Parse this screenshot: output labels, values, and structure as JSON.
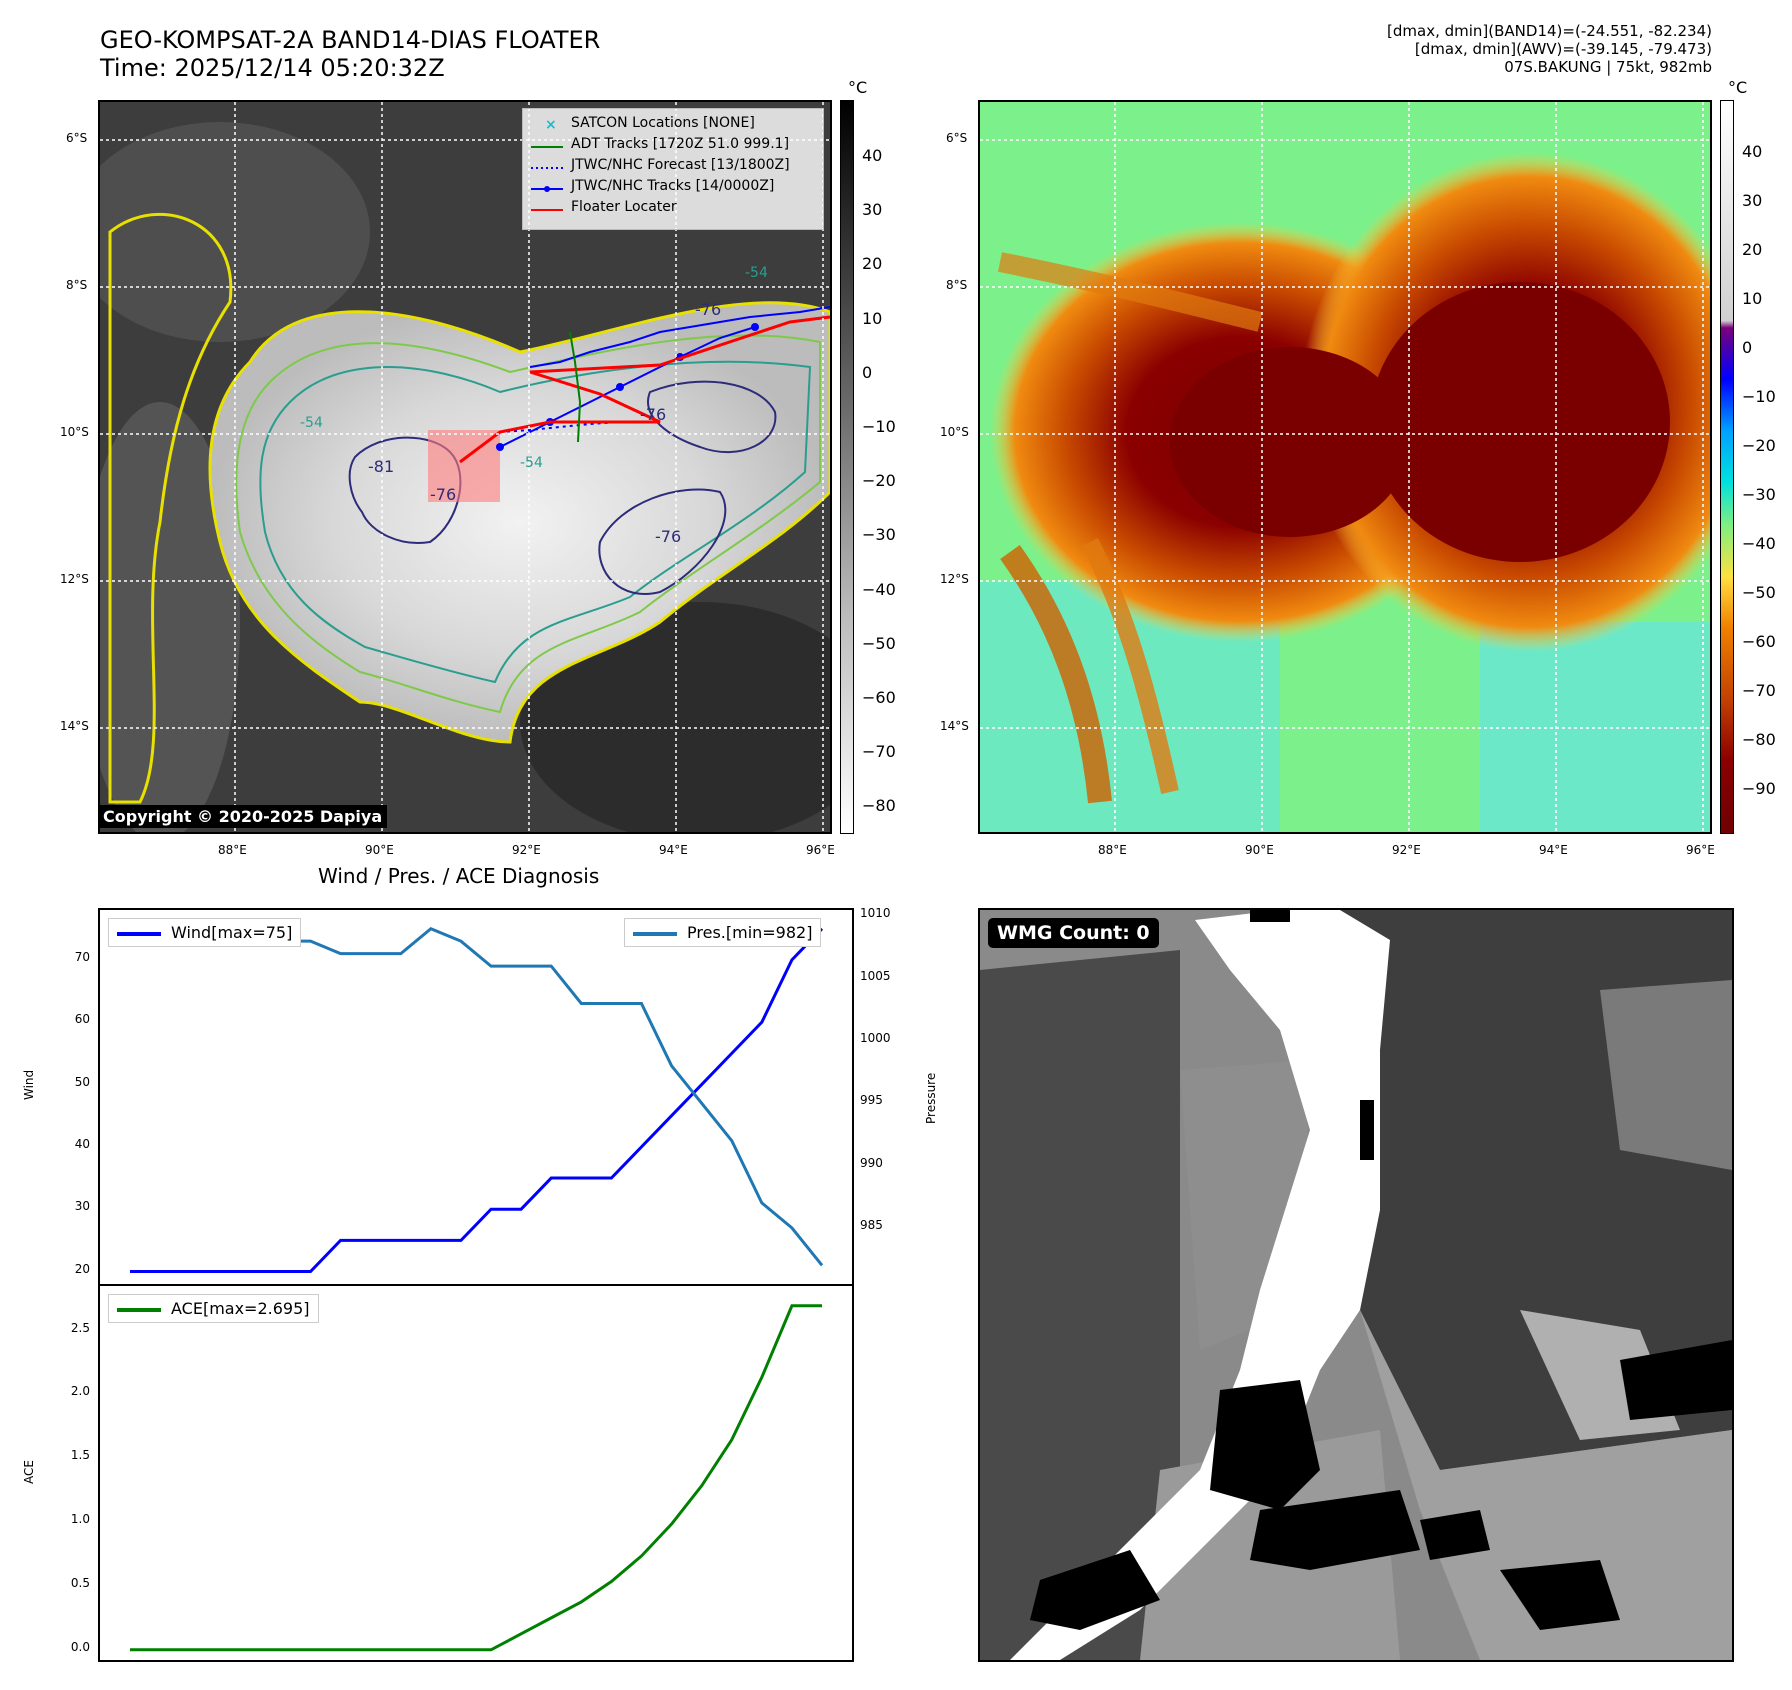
{
  "header": {
    "title_line1": "GEO-KOMPSAT-2A BAND14-DIAS FLOATER",
    "title_line2": "Time: 2025/12/14 05:20:32Z",
    "meta_line1": "[dmax, dmin](BAND14)=(-24.551, -82.234)",
    "meta_line2": "[dmax, dmin](AWV)=(-39.145, -79.473)",
    "meta_line3": "07S.BAKUNG | 75kt, 982mb"
  },
  "map": {
    "lat_labels": [
      "6°S",
      "8°S",
      "10°S",
      "12°S",
      "14°S"
    ],
    "lon_labels": [
      "88°E",
      "90°E",
      "92°E",
      "94°E",
      "96°E"
    ],
    "unit": "°C",
    "copyright": "Copyright © 2020-2025 Dapiya",
    "contour_labels": [
      "-76",
      "-81",
      "-76",
      "-76",
      "-76",
      "-54",
      "-54",
      "-54"
    ]
  },
  "colorbar_left": {
    "ticks": [
      "40",
      "30",
      "20",
      "10",
      "0",
      "−10",
      "−20",
      "−30",
      "−40",
      "−50",
      "−60",
      "−70",
      "−80"
    ]
  },
  "colorbar_right": {
    "ticks": [
      "40",
      "30",
      "20",
      "10",
      "0",
      "−10",
      "−20",
      "−30",
      "−40",
      "−50",
      "−60",
      "−70",
      "−80",
      "−90"
    ]
  },
  "legend": {
    "items": [
      {
        "label": "SATCON Locations [NONE]",
        "color": "#17becf",
        "style": "x"
      },
      {
        "label": "ADT Tracks [1720Z 51.0 999.1]",
        "color": "#008000",
        "style": "solid"
      },
      {
        "label": "JTWC/NHC Forecast [13/1800Z]",
        "color": "#0000ff",
        "style": "dotted"
      },
      {
        "label": "JTWC/NHC Tracks [14/0000Z]",
        "color": "#0000ff",
        "style": "marker"
      },
      {
        "label": "Floater Locater",
        "color": "#ff0000",
        "style": "solid"
      }
    ]
  },
  "diagnosis": {
    "title": "Wind / Pres. / ACE Diagnosis",
    "wind_label": "Wind[max=75]",
    "pres_label": "Pres.[min=982]",
    "ace_label": "ACE[max=2.695]",
    "y_wind_title": "Wind",
    "y_pres_title": "Pressure",
    "y_ace_title": "ACE",
    "wind_color": "#0000ff",
    "pres_color": "#1f77b4",
    "ace_color": "#008000"
  },
  "wmg": {
    "label": "WMG Count: 0"
  },
  "chart_data": [
    {
      "type": "line",
      "title": "Wind / Pres. / ACE Diagnosis",
      "x": [
        0,
        1,
        2,
        3,
        4,
        5,
        6,
        7,
        8,
        9,
        10,
        11,
        12,
        13,
        14,
        15,
        16,
        17,
        18,
        19,
        20,
        21,
        22,
        23
      ],
      "series": [
        {
          "name": "Wind[max=75]",
          "axis": "left",
          "values": [
            20,
            20,
            20,
            20,
            20,
            20,
            20,
            25,
            25,
            25,
            25,
            25,
            30,
            30,
            35,
            35,
            35,
            40,
            45,
            50,
            55,
            60,
            70,
            75
          ]
        },
        {
          "name": "Pres.[min=982]",
          "axis": "right",
          "values": [
            1008,
            1008,
            1008,
            1008,
            1008,
            1008,
            1008,
            1007,
            1007,
            1007,
            1009,
            1008,
            1006,
            1006,
            1006,
            1003,
            1003,
            1003,
            998,
            995,
            992,
            987,
            985,
            982
          ]
        }
      ],
      "ylabel": "Wind",
      "ylim": [
        18,
        78
      ],
      "y2label": "Pressure",
      "y2lim": [
        980.5,
        1010.5
      ],
      "yticks": [
        20,
        30,
        40,
        50,
        60,
        70
      ],
      "y2ticks": [
        985,
        990,
        995,
        1000,
        1005,
        1010
      ]
    },
    {
      "type": "line",
      "x": [
        0,
        1,
        2,
        3,
        4,
        5,
        6,
        7,
        8,
        9,
        10,
        11,
        12,
        13,
        14,
        15,
        16,
        17,
        18,
        19,
        20,
        21,
        22,
        23
      ],
      "series": [
        {
          "name": "ACE[max=2.695]",
          "values": [
            0,
            0,
            0,
            0,
            0,
            0,
            0,
            0,
            0,
            0,
            0,
            0,
            0,
            0.125,
            0.25,
            0.375,
            0.535,
            0.735,
            0.985,
            1.285,
            1.645,
            2.135,
            2.695,
            2.695
          ]
        }
      ],
      "ylabel": "ACE",
      "ylim": [
        -0.08,
        2.85
      ],
      "yticks": [
        0.0,
        0.5,
        1.0,
        1.5,
        2.0,
        2.5
      ]
    }
  ]
}
